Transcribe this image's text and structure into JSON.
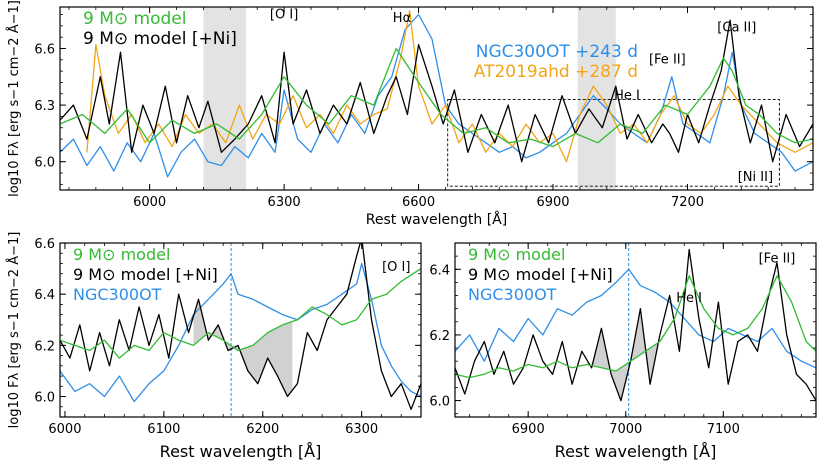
{
  "chart_data": [
    {
      "type": "line",
      "panel": "top",
      "xlabel": "Rest wavelength [Å]",
      "ylabel": "log10 Fλ [erg s−1 cm−2 Å−1]",
      "xlim": [
        5800,
        7480
      ],
      "ylim": [
        5.85,
        6.82
      ],
      "xticks": [
        6000,
        6300,
        6600,
        6900,
        7200
      ],
      "yticks": [
        6.0,
        6.3,
        6.6
      ],
      "xtick_labels": [
        "6000",
        "6300",
        "6600",
        "6900",
        "7200"
      ],
      "ytick_labels": [
        "6.0",
        "6.3",
        "6.6"
      ],
      "shaded_regions": [
        [
          6120,
          6215
        ],
        [
          6955,
          7040
        ]
      ],
      "inset_box": {
        "x": [
          6665,
          7405
        ],
        "y": [
          5.87,
          6.33
        ],
        "label": "[Ni II]"
      },
      "annotations": [
        {
          "text": "[O I]",
          "x": 6300,
          "y": 6.76
        },
        {
          "text": "Hα",
          "x": 6563,
          "y": 6.74
        },
        {
          "text": "[Ca II]",
          "x": 7310,
          "y": 6.69
        },
        {
          "text": "[Fe II]",
          "x": 7155,
          "y": 6.52
        },
        {
          "text": "He I",
          "x": 7065,
          "y": 6.33
        }
      ],
      "legend_left": [
        {
          "label": "9 M⊙ model",
          "color": "#33bb33"
        },
        {
          "label": "9 M⊙ model [+Ni]",
          "color": "#000000"
        }
      ],
      "legend_right": [
        {
          "label": "NGC300OT +243 d",
          "color": "#2f8fe8"
        },
        {
          "label": "AT2019ahd +287 d",
          "color": "#f2a516"
        }
      ],
      "series": [
        {
          "name": "9 M⊙ model [+Ni]",
          "color": "#000000",
          "width": 1.3,
          "x": [
            5800,
            5830,
            5860,
            5890,
            5910,
            5935,
            5960,
            5985,
            6010,
            6035,
            6060,
            6085,
            6110,
            6130,
            6160,
            6190,
            6220,
            6250,
            6280,
            6300,
            6320,
            6350,
            6380,
            6410,
            6440,
            6470,
            6500,
            6530,
            6550,
            6575,
            6600,
            6630,
            6655,
            6680,
            6710,
            6740,
            6770,
            6800,
            6830,
            6860,
            6890,
            6920,
            6950,
            6980,
            7010,
            7040,
            7065,
            7090,
            7120,
            7145,
            7160,
            7180,
            7200,
            7225,
            7250,
            7275,
            7295,
            7315,
            7340,
            7365,
            7390,
            7420,
            7450,
            7480
          ],
          "y": [
            6.22,
            6.3,
            6.12,
            6.45,
            6.2,
            6.58,
            6.05,
            6.3,
            6.15,
            6.4,
            6.1,
            6.35,
            6.18,
            6.32,
            6.05,
            6.12,
            6.2,
            6.35,
            6.1,
            6.58,
            6.2,
            6.38,
            6.15,
            6.3,
            6.2,
            6.42,
            6.15,
            6.35,
            6.45,
            6.25,
            6.62,
            6.4,
            6.2,
            6.38,
            6.05,
            6.25,
            6.1,
            6.3,
            6.0,
            6.25,
            6.1,
            6.35,
            6.15,
            6.28,
            6.18,
            6.4,
            6.12,
            6.25,
            6.1,
            6.2,
            6.15,
            6.05,
            6.25,
            6.1,
            6.3,
            6.48,
            6.75,
            6.35,
            6.1,
            6.3,
            6.0,
            6.25,
            6.08,
            6.2
          ]
        },
        {
          "name": "9 M⊙ model",
          "color": "#33bb33",
          "width": 1.3,
          "x": [
            5800,
            5850,
            5900,
            5950,
            6000,
            6050,
            6100,
            6150,
            6200,
            6250,
            6300,
            6350,
            6400,
            6450,
            6500,
            6550,
            6600,
            6650,
            6700,
            6750,
            6800,
            6850,
            6900,
            6950,
            7000,
            7050,
            7100,
            7150,
            7200,
            7250,
            7280,
            7300,
            7330,
            7360,
            7400,
            7440,
            7480
          ],
          "y": [
            6.2,
            6.25,
            6.15,
            6.28,
            6.1,
            6.22,
            6.15,
            6.2,
            6.12,
            6.25,
            6.45,
            6.3,
            6.2,
            6.35,
            6.3,
            6.6,
            6.42,
            6.25,
            6.15,
            6.18,
            6.1,
            6.12,
            6.08,
            6.15,
            6.1,
            6.2,
            6.15,
            6.3,
            6.25,
            6.4,
            6.55,
            6.48,
            6.3,
            6.25,
            6.15,
            6.1,
            6.12
          ]
        },
        {
          "name": "NGC300OT +243 d",
          "color": "#2f8fe8",
          "width": 1.3,
          "x": [
            5800,
            5830,
            5860,
            5890,
            5920,
            5950,
            5980,
            6010,
            6040,
            6070,
            6100,
            6130,
            6160,
            6190,
            6220,
            6250,
            6280,
            6300,
            6330,
            6360,
            6390,
            6420,
            6450,
            6480,
            6510,
            6540,
            6570,
            6600,
            6630,
            6660,
            6690,
            6720,
            6750,
            6780,
            6810,
            6840,
            6870,
            6900,
            6930,
            6960,
            6990,
            7020,
            7050,
            7080,
            7110,
            7140,
            7165,
            7190,
            7220,
            7250,
            7280,
            7300,
            7320,
            7350,
            7380,
            7410,
            7440,
            7480
          ],
          "y": [
            6.05,
            6.12,
            5.98,
            6.08,
            5.95,
            6.1,
            6.0,
            6.15,
            5.92,
            6.05,
            6.12,
            6.0,
            5.98,
            6.08,
            6.02,
            6.15,
            6.05,
            6.38,
            6.12,
            6.05,
            6.2,
            6.1,
            6.25,
            6.15,
            6.35,
            6.45,
            6.7,
            6.78,
            6.65,
            6.3,
            6.2,
            6.15,
            6.1,
            6.05,
            6.08,
            6.02,
            6.05,
            6.1,
            6.15,
            6.25,
            6.35,
            6.28,
            6.2,
            6.15,
            6.1,
            6.25,
            6.45,
            6.2,
            6.15,
            6.1,
            6.35,
            6.58,
            6.3,
            6.15,
            6.1,
            6.05,
            5.95,
            6.0
          ]
        },
        {
          "name": "AT2019ahd +287 d",
          "color": "#f2a516",
          "width": 1.3,
          "x": [
            5860,
            5880,
            5900,
            5930,
            5960,
            5990,
            6020,
            6050,
            6080,
            6110,
            6140,
            6170,
            6200,
            6230,
            6260,
            6290,
            6320,
            6350,
            6380,
            6410,
            6440,
            6470,
            6500,
            6530,
            6560,
            6580,
            6600,
            6630,
            6660,
            6690,
            6720,
            6750,
            6780,
            6810,
            6840,
            6870,
            6900,
            6930,
            6960,
            6990,
            7020,
            7050,
            7080,
            7110,
            7140,
            7170,
            7200,
            7230,
            7260,
            7290,
            7320,
            7360,
            7400,
            7440,
            7480
          ],
          "y": [
            6.05,
            6.62,
            6.35,
            6.15,
            6.25,
            6.1,
            6.2,
            6.08,
            6.25,
            6.15,
            6.2,
            6.1,
            6.3,
            6.12,
            6.25,
            6.2,
            6.35,
            6.18,
            6.25,
            6.15,
            6.3,
            6.2,
            6.25,
            6.28,
            6.55,
            6.8,
            6.4,
            6.2,
            6.3,
            6.1,
            6.2,
            6.05,
            6.15,
            6.08,
            6.2,
            6.1,
            6.15,
            6.0,
            6.25,
            6.4,
            6.3,
            6.15,
            6.2,
            6.1,
            6.25,
            6.35,
            6.2,
            6.15,
            6.25,
            6.4,
            6.3,
            6.2,
            6.1,
            6.05,
            6.1
          ]
        }
      ]
    },
    {
      "type": "line",
      "panel": "bottom-left",
      "xlabel": "Rest wavelength [Å]",
      "ylabel": "log10 Fλ [erg s−1 cm−2 Å−1]",
      "xlim": [
        5995,
        6360
      ],
      "ylim": [
        5.92,
        6.6
      ],
      "xticks": [
        6000,
        6100,
        6200,
        6300
      ],
      "yticks": [
        6.0,
        6.2,
        6.4,
        6.6
      ],
      "xtick_labels": [
        "6000",
        "6100",
        "6200",
        "6300"
      ],
      "ytick_labels": [
        "6.0",
        "6.2",
        "6.4",
        "6.6"
      ],
      "vline": 6168,
      "annotations": [
        {
          "text": "[O I]",
          "x": 6335,
          "y": 6.49
        }
      ],
      "legend": [
        {
          "label": "9 M⊙ model",
          "color": "#33bb33"
        },
        {
          "label": "9 M⊙ model [+Ni]",
          "color": "#000000"
        },
        {
          "label": "NGC300OT",
          "color": "#2f8fe8"
        }
      ],
      "series": [
        {
          "name": "9 M⊙ model [+Ni]",
          "color": "#000000",
          "width": 1.3,
          "x": [
            5995,
            6005,
            6015,
            6025,
            6035,
            6045,
            6055,
            6065,
            6075,
            6085,
            6095,
            6105,
            6115,
            6125,
            6135,
            6145,
            6155,
            6165,
            6175,
            6185,
            6195,
            6205,
            6215,
            6225,
            6235,
            6245,
            6255,
            6265,
            6275,
            6285,
            6295,
            6300,
            6310,
            6320,
            6330,
            6340,
            6350,
            6360
          ],
          "y": [
            6.22,
            6.15,
            6.28,
            6.1,
            6.25,
            6.12,
            6.3,
            6.18,
            6.35,
            6.2,
            6.32,
            6.15,
            6.4,
            6.25,
            6.38,
            6.22,
            6.28,
            6.18,
            6.2,
            6.1,
            6.05,
            6.15,
            6.08,
            6.0,
            6.05,
            6.25,
            6.18,
            6.3,
            6.35,
            6.4,
            6.55,
            6.62,
            6.3,
            6.1,
            6.0,
            6.05,
            5.95,
            6.05
          ]
        },
        {
          "name": "9 M⊙ model",
          "color": "#33bb33",
          "width": 1.3,
          "x": [
            5995,
            6010,
            6025,
            6040,
            6055,
            6070,
            6085,
            6100,
            6115,
            6130,
            6145,
            6160,
            6175,
            6190,
            6205,
            6220,
            6235,
            6250,
            6265,
            6280,
            6295,
            6310,
            6325,
            6340,
            6360
          ],
          "y": [
            6.22,
            6.2,
            6.18,
            6.22,
            6.15,
            6.2,
            6.18,
            6.25,
            6.22,
            6.2,
            6.25,
            6.22,
            6.18,
            6.2,
            6.25,
            6.28,
            6.3,
            6.35,
            6.32,
            6.28,
            6.3,
            6.38,
            6.4,
            6.45,
            6.5
          ]
        },
        {
          "name": "NGC300OT",
          "color": "#2f8fe8",
          "width": 1.3,
          "x": [
            5995,
            6010,
            6025,
            6040,
            6055,
            6070,
            6085,
            6100,
            6115,
            6130,
            6145,
            6160,
            6168,
            6175,
            6190,
            6205,
            6220,
            6235,
            6250,
            6265,
            6280,
            6295,
            6300,
            6310,
            6320,
            6330,
            6340,
            6350,
            6360
          ],
          "y": [
            6.1,
            6.02,
            6.05,
            6.0,
            6.08,
            5.98,
            6.05,
            6.1,
            6.2,
            6.32,
            6.38,
            6.44,
            6.48,
            6.4,
            6.38,
            6.35,
            6.32,
            6.3,
            6.34,
            6.36,
            6.4,
            6.44,
            6.52,
            6.38,
            6.2,
            6.12,
            6.06,
            6.02,
            6.0
          ]
        }
      ]
    },
    {
      "type": "line",
      "panel": "bottom-right",
      "xlabel": "Rest wavelength [Å]",
      "ylabel": "",
      "xlim": [
        6825,
        7195
      ],
      "ylim": [
        5.95,
        6.48
      ],
      "xticks": [
        6900,
        7000,
        7100
      ],
      "yticks": [
        6.0,
        6.2,
        6.4
      ],
      "xtick_labels": [
        "6900",
        "7000",
        "7100"
      ],
      "ytick_labels": [
        "6.0",
        "6.2",
        "6.4"
      ],
      "vline": 7003,
      "annotations": [
        {
          "text": "[Fe II]",
          "x": 7155,
          "y": 6.42
        },
        {
          "text": "He I",
          "x": 7065,
          "y": 6.3
        }
      ],
      "legend": [
        {
          "label": "9 M⊙ model",
          "color": "#33bb33"
        },
        {
          "label": "9 M⊙ model [+Ni]",
          "color": "#000000"
        },
        {
          "label": "NGC300OT",
          "color": "#2f8fe8"
        }
      ],
      "series": [
        {
          "name": "9 M⊙ model [+Ni]",
          "color": "#000000",
          "width": 1.3,
          "x": [
            6825,
            6835,
            6845,
            6855,
            6865,
            6875,
            6885,
            6895,
            6905,
            6915,
            6925,
            6935,
            6945,
            6955,
            6965,
            6975,
            6985,
            6995,
            7005,
            7015,
            7025,
            7035,
            7045,
            7055,
            7065,
            7075,
            7085,
            7095,
            7105,
            7115,
            7125,
            7135,
            7145,
            7155,
            7165,
            7175,
            7185,
            7195
          ],
          "y": [
            6.1,
            6.02,
            6.12,
            6.18,
            6.08,
            6.15,
            6.05,
            6.1,
            6.2,
            6.12,
            6.08,
            6.18,
            6.05,
            6.15,
            6.1,
            6.22,
            6.08,
            6.0,
            6.12,
            6.28,
            6.05,
            6.2,
            6.32,
            6.15,
            6.46,
            6.25,
            6.1,
            6.3,
            6.05,
            6.18,
            6.2,
            6.15,
            6.3,
            6.42,
            6.2,
            6.08,
            6.05,
            6.0
          ]
        },
        {
          "name": "9 M⊙ model",
          "color": "#33bb33",
          "width": 1.3,
          "x": [
            6825,
            6840,
            6855,
            6870,
            6885,
            6900,
            6915,
            6930,
            6945,
            6960,
            6975,
            6990,
            7005,
            7020,
            7035,
            7050,
            7065,
            7080,
            7095,
            7110,
            7125,
            7140,
            7155,
            7170,
            7185,
            7195
          ],
          "y": [
            6.08,
            6.07,
            6.08,
            6.1,
            6.09,
            6.11,
            6.1,
            6.12,
            6.1,
            6.11,
            6.1,
            6.09,
            6.12,
            6.15,
            6.18,
            6.25,
            6.38,
            6.28,
            6.22,
            6.2,
            6.22,
            6.28,
            6.38,
            6.3,
            6.18,
            6.15
          ]
        },
        {
          "name": "NGC300OT",
          "color": "#2f8fe8",
          "width": 1.3,
          "x": [
            6825,
            6840,
            6855,
            6870,
            6885,
            6900,
            6915,
            6930,
            6945,
            6960,
            6975,
            6990,
            7003,
            7015,
            7030,
            7045,
            7060,
            7075,
            7090,
            7105,
            7120,
            7135,
            7150,
            7165,
            7180,
            7195
          ],
          "y": [
            6.15,
            6.2,
            6.12,
            6.22,
            6.18,
            6.25,
            6.2,
            6.28,
            6.26,
            6.3,
            6.32,
            6.36,
            6.4,
            6.35,
            6.33,
            6.3,
            6.25,
            6.2,
            6.18,
            6.22,
            6.2,
            6.18,
            6.22,
            6.15,
            6.12,
            6.1
          ]
        }
      ]
    }
  ]
}
